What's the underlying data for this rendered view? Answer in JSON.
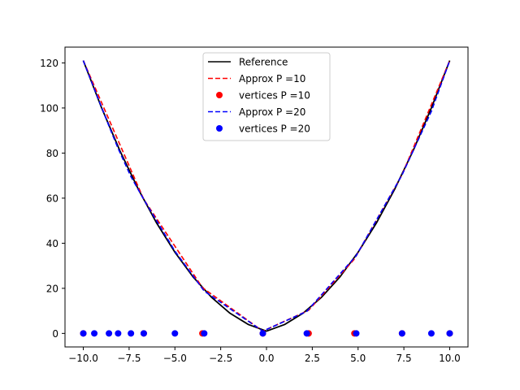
{
  "chart_data": {
    "type": "line",
    "title": "",
    "xlabel": "",
    "ylabel": "",
    "xlim": [
      -11.0,
      11.0
    ],
    "ylim": [
      -6.0,
      127.0
    ],
    "xticks": [
      -10.0,
      -7.5,
      -5.0,
      -2.5,
      0.0,
      2.5,
      5.0,
      7.5,
      10.0
    ],
    "xtick_labels": [
      "−10.0",
      "−7.5",
      "−5.0",
      "−2.5",
      "0.0",
      "2.5",
      "5.0",
      "7.5",
      "10.0"
    ],
    "yticks": [
      0,
      20,
      40,
      60,
      80,
      100,
      120
    ],
    "ytick_labels": [
      "0",
      "20",
      "40",
      "60",
      "80",
      "100",
      "120"
    ],
    "grid": false,
    "legend_position": "top-center",
    "series": [
      {
        "name": "Reference",
        "kind": "line",
        "style": "solid",
        "color": "#000000",
        "x": [
          -10,
          -9,
          -8,
          -7,
          -6,
          -5,
          -4,
          -3,
          -2,
          -1,
          0,
          1,
          2,
          3,
          4,
          5,
          6,
          7,
          8,
          9,
          10
        ],
        "y": [
          121,
          100,
          81,
          64,
          49,
          36,
          25,
          16,
          9,
          4,
          1,
          4,
          9,
          16,
          25,
          36,
          49,
          64,
          81,
          100,
          121
        ]
      },
      {
        "name": " Approx P =10",
        "kind": "line",
        "style": "dashed",
        "color": "#ff0000",
        "x": [
          -10.0,
          -6.7,
          -3.5,
          -0.2,
          2.3,
          4.8,
          7.4,
          10.0
        ],
        "y": [
          121,
          59.5,
          20.3,
          1.0,
          10.3,
          33.0,
          70.3,
          121
        ]
      },
      {
        "name": "vertices  P =10",
        "kind": "scatter",
        "color": "#ff0000",
        "x": [
          -10.0,
          -6.7,
          -3.5,
          -0.2,
          2.3,
          4.8,
          7.4,
          10.0
        ],
        "y": [
          0,
          0,
          0,
          0,
          0,
          0,
          0,
          0
        ]
      },
      {
        "name": " Approx P =20",
        "kind": "line",
        "style": "dashed",
        "color": "#0000ff",
        "x": [
          -10.0,
          -9.4,
          -8.6,
          -8.1,
          -7.4,
          -6.7,
          -5.0,
          -3.4,
          -0.2,
          2.2,
          4.9,
          7.4,
          9.0,
          10.0
        ],
        "y": [
          121,
          108.5,
          92.0,
          82.0,
          69.5,
          59.5,
          36.5,
          18.8,
          1.0,
          9.8,
          34.5,
          70.3,
          98.5,
          121
        ]
      },
      {
        "name": "vertices  P =20",
        "kind": "scatter",
        "color": "#0000ff",
        "x": [
          -10.0,
          -9.4,
          -8.6,
          -8.1,
          -7.4,
          -6.7,
          -5.0,
          -3.4,
          -0.2,
          2.2,
          4.9,
          7.4,
          9.0,
          10.0
        ],
        "y": [
          0,
          0,
          0,
          0,
          0,
          0,
          0,
          0,
          0,
          0,
          0,
          0,
          0,
          0
        ]
      }
    ]
  }
}
